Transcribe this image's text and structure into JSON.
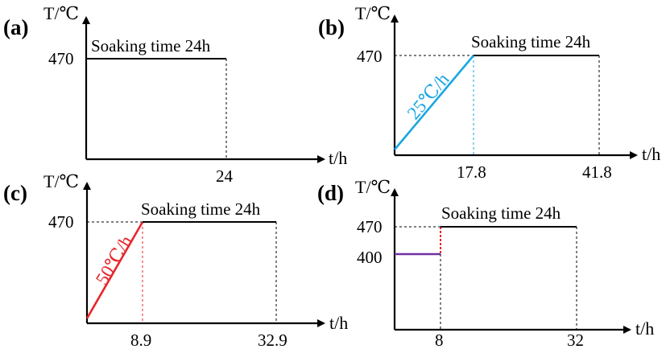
{
  "panels": [
    {
      "id": "a",
      "label": "(a)",
      "y_axis_label": "T/℃",
      "x_axis_label": "t/h",
      "y_tick": "470",
      "x_ticks": [
        "24"
      ],
      "annotation": "Soaking time 24h",
      "rate_label": ""
    },
    {
      "id": "b",
      "label": "(b)",
      "y_axis_label": "T/℃",
      "x_axis_label": "t/h",
      "y_tick": "470",
      "x_ticks": [
        "17.8",
        "41.8"
      ],
      "annotation": "Soaking time 24h",
      "rate_label": "25℃/h",
      "color": "#1aa7e0"
    },
    {
      "id": "c",
      "label": "(c)",
      "y_axis_label": "T/℃",
      "x_axis_label": "t/h",
      "y_tick": "470",
      "x_ticks": [
        "8.9",
        "32.9"
      ],
      "annotation": "Soaking time 24h",
      "rate_label": "50℃/h",
      "color": "#e8262a"
    },
    {
      "id": "d",
      "label": "(d)",
      "y_axis_label": "T/℃",
      "x_axis_label": "t/h",
      "y_ticks": [
        "470",
        "400"
      ],
      "x_ticks": [
        "8",
        "32"
      ],
      "annotation": "Soaking time 24h",
      "rate_label": "",
      "color_low": "#7030a0",
      "color_step": "#e8262a"
    }
  ]
}
